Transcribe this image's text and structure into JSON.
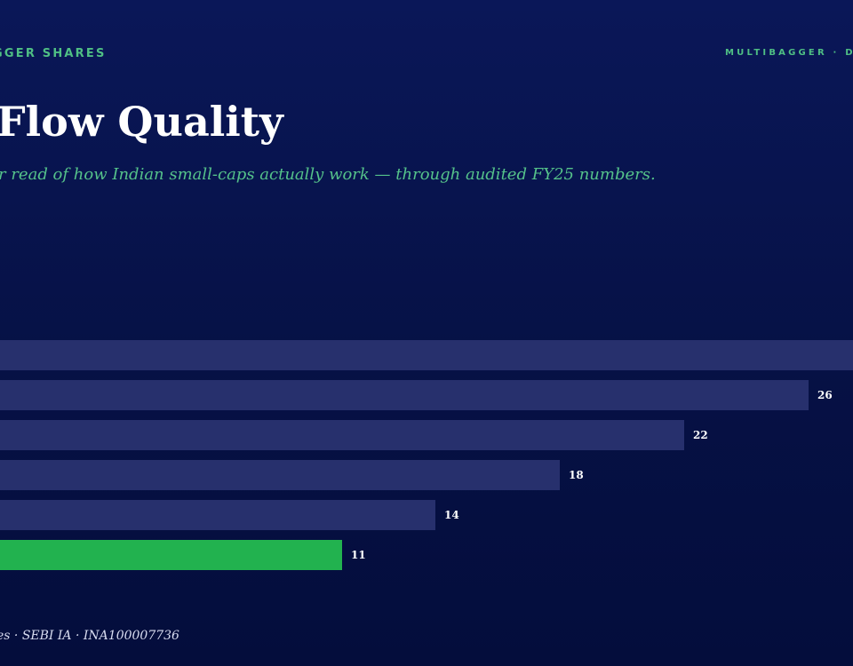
{
  "header": {
    "kicker_left": "GGER SHARES",
    "kicker_right": "MULTIBAGGER · D",
    "title": "Flow Quality",
    "subtitle": "r read of how Indian small-caps actually work — through audited FY25 numbers."
  },
  "footer": {
    "text": "es · SEBI IA · INA100007736"
  },
  "colors": {
    "bar": "#27306d",
    "highlight_bar": "#22b24f",
    "accent": "#4fbf84"
  },
  "chart_data": {
    "type": "bar",
    "orientation": "horizontal",
    "values": [
      30,
      26,
      22,
      18,
      14,
      11
    ],
    "labels": [
      "",
      "26",
      "22",
      "18",
      "14",
      "11"
    ],
    "highlight_index": 5,
    "grid": false
  }
}
